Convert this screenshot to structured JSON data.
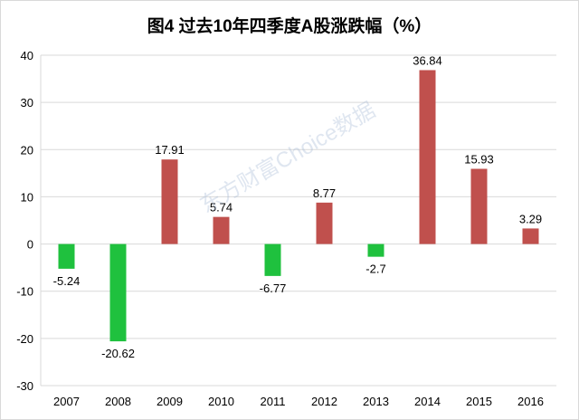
{
  "chart_data": {
    "type": "bar",
    "title": "图4  过去10年四季度A股涨跌幅（%）",
    "categories": [
      "2007",
      "2008",
      "2009",
      "2010",
      "2011",
      "2012",
      "2013",
      "2014",
      "2015",
      "2016"
    ],
    "values": [
      -5.24,
      -20.62,
      17.91,
      5.74,
      -6.77,
      8.77,
      -2.7,
      36.84,
      15.93,
      3.29
    ],
    "data_labels": [
      "-5.24",
      "-20.62",
      "17.91",
      "5.74",
      "-6.77",
      "8.77",
      "-2.7",
      "36.84",
      "15.93",
      "3.29"
    ],
    "ylim": [
      -30,
      40
    ],
    "yticks": [
      -30,
      -20,
      -10,
      0,
      10,
      20,
      30,
      40
    ],
    "ytick_labels": [
      "-30",
      "-20",
      "-10",
      "0",
      "10",
      "20",
      "30",
      "40"
    ],
    "grid": true,
    "legend": "none",
    "colors": {
      "positive": "#c0504d",
      "negative": "#1fc13e",
      "grid": "#d9d9d9"
    }
  },
  "watermark": "东方财富Choice数据"
}
